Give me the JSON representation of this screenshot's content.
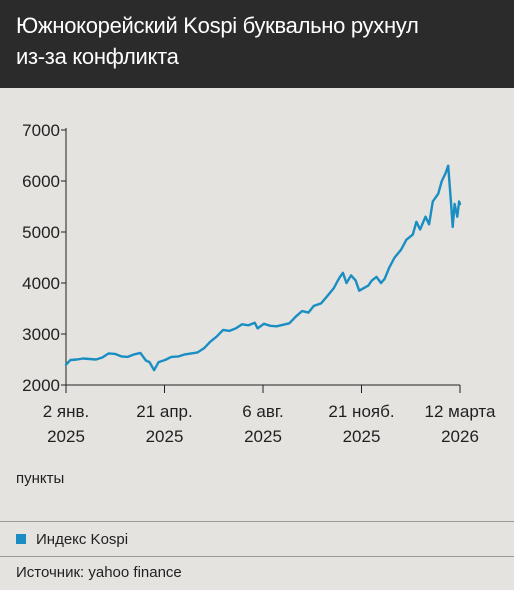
{
  "header": {
    "title": "Южнокорейский Kospi буквально рухнул\nиз-за конфликта"
  },
  "unit_label": "пункты",
  "legend": {
    "label": "Индекс Kospi"
  },
  "source": "Источник: yahoo finance",
  "colors": {
    "line": "#1a8ec3",
    "header_bg": "#2b2b2b",
    "background": "#e4e3df",
    "axis": "#231f20"
  },
  "chart_data": {
    "type": "line",
    "title": "Южнокорейский Kospi буквально рухнул из-за конфликта",
    "ylabel": "пункты",
    "ylim": [
      2000,
      7000
    ],
    "xlim": [
      "2025-01-02",
      "2026-03-12"
    ],
    "grid": false,
    "legend": "bottom",
    "yticks": [
      "7000",
      "6000",
      "5000",
      "4000",
      "3000",
      "2000"
    ],
    "xticks": [
      {
        "line1": "2 янв.",
        "line2": "2025"
      },
      {
        "line1": "21 апр.",
        "line2": "2025"
      },
      {
        "line1": "6 авг.",
        "line2": "2025"
      },
      {
        "line1": "21 нояб.",
        "line2": "2025"
      },
      {
        "line1": "12 марта",
        "line2": "2026"
      }
    ],
    "series": [
      {
        "name": "Индекс Kospi",
        "points": [
          [
            "2025-01-02",
            2400
          ],
          [
            "2025-01-07",
            2490
          ],
          [
            "2025-01-14",
            2500
          ],
          [
            "2025-01-21",
            2520
          ],
          [
            "2025-01-28",
            2510
          ],
          [
            "2025-02-04",
            2500
          ],
          [
            "2025-02-11",
            2540
          ],
          [
            "2025-02-18",
            2620
          ],
          [
            "2025-02-25",
            2610
          ],
          [
            "2025-03-04",
            2560
          ],
          [
            "2025-03-11",
            2550
          ],
          [
            "2025-03-18",
            2600
          ],
          [
            "2025-03-25",
            2630
          ],
          [
            "2025-03-31",
            2480
          ],
          [
            "2025-04-04",
            2450
          ],
          [
            "2025-04-09",
            2290
          ],
          [
            "2025-04-14",
            2450
          ],
          [
            "2025-04-21",
            2490
          ],
          [
            "2025-04-28",
            2550
          ],
          [
            "2025-05-06",
            2560
          ],
          [
            "2025-05-13",
            2600
          ],
          [
            "2025-05-20",
            2620
          ],
          [
            "2025-05-27",
            2640
          ],
          [
            "2025-06-03",
            2720
          ],
          [
            "2025-06-10",
            2850
          ],
          [
            "2025-06-17",
            2950
          ],
          [
            "2025-06-24",
            3080
          ],
          [
            "2025-07-01",
            3060
          ],
          [
            "2025-07-08",
            3110
          ],
          [
            "2025-07-15",
            3190
          ],
          [
            "2025-07-22",
            3170
          ],
          [
            "2025-07-29",
            3220
          ],
          [
            "2025-08-01",
            3110
          ],
          [
            "2025-08-08",
            3200
          ],
          [
            "2025-08-15",
            3160
          ],
          [
            "2025-08-22",
            3150
          ],
          [
            "2025-08-29",
            3180
          ],
          [
            "2025-09-05",
            3210
          ],
          [
            "2025-09-12",
            3340
          ],
          [
            "2025-09-19",
            3450
          ],
          [
            "2025-09-26",
            3420
          ],
          [
            "2025-10-02",
            3550
          ],
          [
            "2025-10-10",
            3600
          ],
          [
            "2025-10-17",
            3750
          ],
          [
            "2025-10-24",
            3900
          ],
          [
            "2025-10-30",
            4100
          ],
          [
            "2025-11-03",
            4200
          ],
          [
            "2025-11-07",
            4000
          ],
          [
            "2025-11-12",
            4150
          ],
          [
            "2025-11-17",
            4050
          ],
          [
            "2025-11-21",
            3850
          ],
          [
            "2025-11-26",
            3900
          ],
          [
            "2025-12-01",
            3950
          ],
          [
            "2025-12-05",
            4050
          ],
          [
            "2025-12-10",
            4120
          ],
          [
            "2025-12-15",
            4000
          ],
          [
            "2025-12-19",
            4080
          ],
          [
            "2025-12-24",
            4300
          ],
          [
            "2025-12-30",
            4500
          ],
          [
            "2026-01-06",
            4650
          ],
          [
            "2026-01-12",
            4850
          ],
          [
            "2026-01-19",
            4950
          ],
          [
            "2026-01-23",
            5200
          ],
          [
            "2026-01-27",
            5050
          ],
          [
            "2026-02-02",
            5300
          ],
          [
            "2026-02-06",
            5150
          ],
          [
            "2026-02-10",
            5600
          ],
          [
            "2026-02-16",
            5750
          ],
          [
            "2026-02-20",
            6000
          ],
          [
            "2026-02-24",
            6150
          ],
          [
            "2026-02-27",
            6300
          ],
          [
            "2026-03-02",
            5600
          ],
          [
            "2026-03-04",
            5100
          ],
          [
            "2026-03-06",
            5550
          ],
          [
            "2026-03-09",
            5300
          ],
          [
            "2026-03-11",
            5600
          ],
          [
            "2026-03-12",
            5550
          ]
        ]
      }
    ]
  }
}
